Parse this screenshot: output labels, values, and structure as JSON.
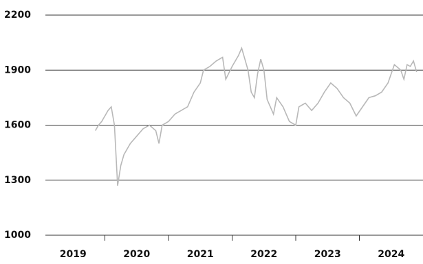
{
  "chart_data": {
    "type": "line",
    "x": [
      2019.85,
      2019.9,
      2019.95,
      2020.0,
      2020.05,
      2020.1,
      2020.15,
      2020.2,
      2020.25,
      2020.3,
      2020.4,
      2020.5,
      2020.6,
      2020.7,
      2020.8,
      2020.85,
      2020.9,
      2021.0,
      2021.1,
      2021.2,
      2021.3,
      2021.4,
      2021.5,
      2021.55,
      2021.65,
      2021.75,
      2021.85,
      2021.9,
      2022.0,
      2022.1,
      2022.15,
      2022.2,
      2022.25,
      2022.3,
      2022.35,
      2022.4,
      2022.45,
      2022.5,
      2022.55,
      2022.65,
      2022.7,
      2022.8,
      2022.9,
      2023.0,
      2023.05,
      2023.15,
      2023.25,
      2023.35,
      2023.45,
      2023.55,
      2023.65,
      2023.75,
      2023.85,
      2023.95,
      2024.05,
      2024.15,
      2024.25,
      2024.35,
      2024.45,
      2024.5,
      2024.55,
      2024.65,
      2024.7,
      2024.75,
      2024.8,
      2024.85,
      2024.9
    ],
    "series": [
      {
        "color": "#b8b8b8",
        "values": [
          1570,
          1600,
          1620,
          1650,
          1680,
          1700,
          1600,
          1270,
          1380,
          1440,
          1500,
          1540,
          1580,
          1600,
          1570,
          1500,
          1600,
          1620,
          1660,
          1680,
          1700,
          1780,
          1830,
          1900,
          1920,
          1950,
          1970,
          1850,
          1920,
          1980,
          2020,
          1960,
          1900,
          1780,
          1750,
          1880,
          1960,
          1900,
          1740,
          1660,
          1750,
          1700,
          1620,
          1600,
          1700,
          1720,
          1680,
          1720,
          1780,
          1830,
          1800,
          1750,
          1720,
          1650,
          1700,
          1750,
          1760,
          1780,
          1830,
          1880,
          1930,
          1900,
          1850,
          1930,
          1920,
          1950,
          1890
        ]
      }
    ],
    "xlim": [
      2019,
      2025
    ],
    "xticks": [
      {
        "value": 2019.5,
        "label": "2019"
      },
      {
        "value": 2020.5,
        "label": "2020"
      },
      {
        "value": 2021.5,
        "label": "2021"
      },
      {
        "value": 2022.5,
        "label": "2022"
      },
      {
        "value": 2023.5,
        "label": "2023"
      },
      {
        "value": 2024.5,
        "label": "2024"
      }
    ],
    "xtick_marks": [
      2020,
      2021,
      2022,
      2023,
      2024
    ],
    "ylim": [
      1000,
      2200
    ],
    "yticks": [
      1000,
      1300,
      1600,
      1900,
      2200
    ],
    "grid": true
  }
}
